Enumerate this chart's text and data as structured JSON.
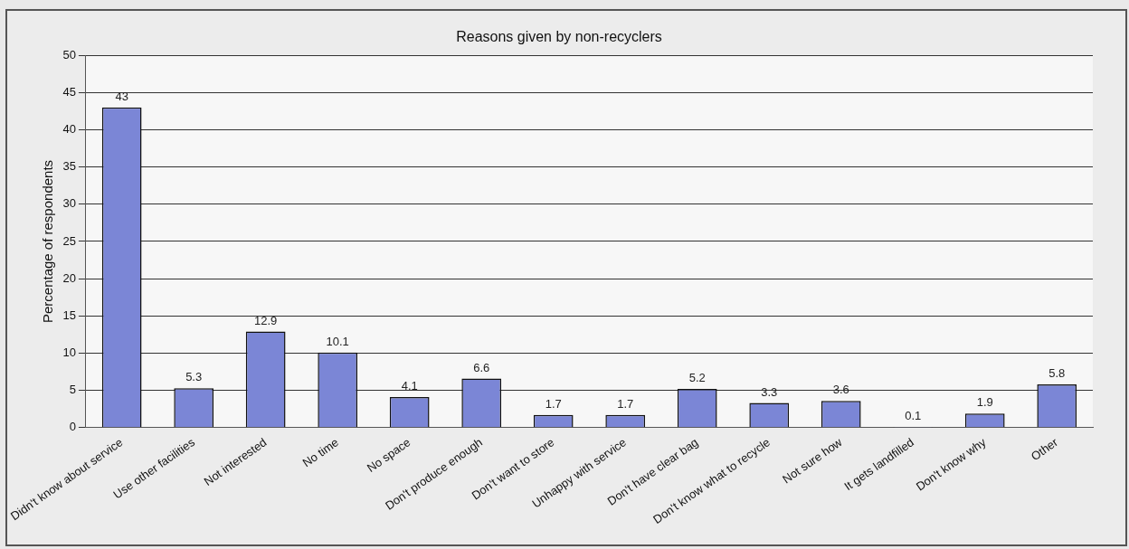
{
  "chart_data": {
    "type": "bar",
    "title": "Reasons given by non-recyclers",
    "ylabel": "Percentage of respondents",
    "categories": [
      "Didn't know about service",
      "Use other facilities",
      "Not interested",
      "No time",
      "No space",
      "Don't produce enough",
      "Don't want to store",
      "Unhappy with service",
      "Don't have clear bag",
      "Don't know what to recycle",
      "Not sure how",
      "It gets landfilled",
      "Don't know why",
      "Other"
    ],
    "values": [
      43,
      5.3,
      12.9,
      10.1,
      4.1,
      6.6,
      1.7,
      1.7,
      5.2,
      3.3,
      3.6,
      0.1,
      1.9,
      5.8
    ],
    "color": "#7b86d6",
    "ylim": [
      0,
      50
    ],
    "yticks": [
      0,
      5,
      10,
      15,
      20,
      25,
      30,
      35,
      40,
      45,
      50
    ],
    "grid": "y",
    "data_labels": true,
    "legend": false
  }
}
